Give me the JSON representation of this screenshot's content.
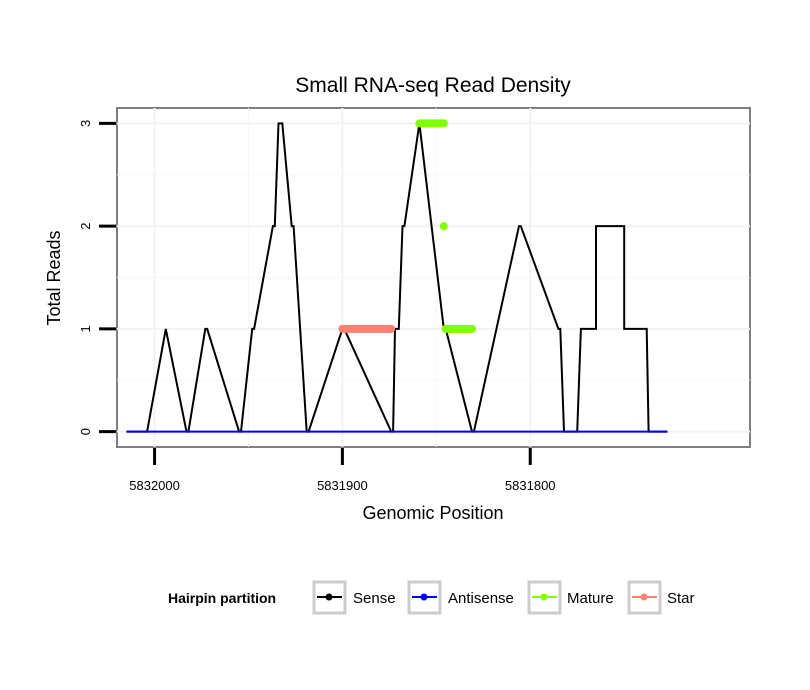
{
  "chart_data": {
    "type": "line",
    "title": "Small RNA-seq Read Density",
    "xlabel": "Genomic Position",
    "ylabel": "Total Reads",
    "x_reversed": true,
    "xlim": [
      5832020,
      5831683
    ],
    "ylim": [
      -0.15,
      3.15
    ],
    "x_ticks": [
      5832000,
      5831900,
      5831800
    ],
    "x_tick_labels": [
      "5832000",
      "5831900",
      "5831800"
    ],
    "y_ticks": [
      0,
      1,
      2,
      3
    ],
    "y_tick_labels": [
      "0",
      "1",
      "2",
      "3"
    ],
    "grid": true,
    "legend": {
      "title": "Hairpin partition",
      "position": "bottom",
      "entries": [
        {
          "label": "Sense",
          "color": "#000000"
        },
        {
          "label": "Antisense",
          "color": "#0000ff"
        },
        {
          "label": "Mature",
          "color": "#7fff00"
        },
        {
          "label": "Star",
          "color": "#fa8072"
        }
      ]
    },
    "series": [
      {
        "name": "Sense",
        "color": "#000000",
        "kind": "line",
        "x": [
          5832015,
          5832004,
          5831994,
          5831994,
          5831983,
          5831982,
          5831973,
          5831972,
          5831955,
          5831954,
          5831948,
          5831947,
          5831937,
          5831936,
          5831934,
          5831932,
          5831927,
          5831926,
          5831919,
          5831918,
          5831900,
          5831899,
          5831874,
          5831873,
          5831872,
          5831870,
          5831868,
          5831867,
          5831859,
          5831859,
          5831846,
          5831845,
          5831831,
          5831830,
          5831806,
          5831805,
          5831785,
          5831784,
          5831782,
          5831775,
          5831773,
          5831765,
          5831765,
          5831750,
          5831750,
          5831738,
          5831737,
          5831727
        ],
        "y": [
          0,
          0,
          1,
          1,
          0,
          0,
          1,
          1,
          0,
          0,
          1,
          1,
          2,
          2,
          3,
          3,
          2,
          2,
          0,
          0,
          1,
          1,
          0,
          0,
          1,
          1,
          2,
          2,
          3,
          3,
          1,
          1,
          0,
          0,
          2,
          2,
          1,
          1,
          0,
          0,
          1,
          1,
          2,
          2,
          1,
          1,
          0,
          0
        ]
      },
      {
        "name": "Antisense",
        "color": "#0000ff",
        "kind": "line",
        "x": [
          5832015,
          5831727
        ],
        "y": [
          0,
          0
        ]
      },
      {
        "name": "Mature",
        "color": "#7fff00",
        "kind": "segments",
        "segments": [
          {
            "x": [
              5831859,
              5831846
            ],
            "y": [
              3,
              3
            ]
          },
          {
            "x": [
              5831846,
              5831846
            ],
            "y": [
              2,
              2
            ]
          },
          {
            "x": [
              5831845,
              5831831
            ],
            "y": [
              1,
              1
            ]
          }
        ]
      },
      {
        "name": "Star",
        "color": "#fa8072",
        "kind": "segments",
        "segments": [
          {
            "x": [
              5831900,
              5831874
            ],
            "y": [
              1,
              1
            ]
          }
        ]
      }
    ]
  }
}
